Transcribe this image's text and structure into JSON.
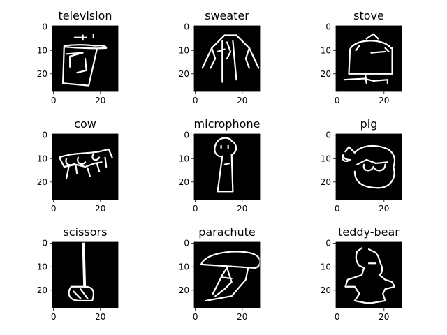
{
  "chart_data": {
    "type": "image-grid",
    "colors": {
      "background": "#000000",
      "stroke": "#ffffff",
      "axis": "#000000"
    },
    "image_extent": [
      0,
      28
    ],
    "x_ticks": [
      0,
      20
    ],
    "y_ticks": [
      0,
      10,
      20
    ],
    "grid": false,
    "panels": [
      {
        "title": "television",
        "sketch": "television-icon"
      },
      {
        "title": "sweater",
        "sketch": "sweater-icon"
      },
      {
        "title": "stove",
        "sketch": "stove-icon"
      },
      {
        "title": "cow",
        "sketch": "cow-icon"
      },
      {
        "title": "microphone",
        "sketch": "microphone-icon"
      },
      {
        "title": "pig",
        "sketch": "pig-icon"
      },
      {
        "title": "scissors",
        "sketch": "scissors-icon"
      },
      {
        "title": "parachute",
        "sketch": "parachute-icon"
      },
      {
        "title": "teddy-bear",
        "sketch": "teddy-bear-icon"
      }
    ]
  }
}
